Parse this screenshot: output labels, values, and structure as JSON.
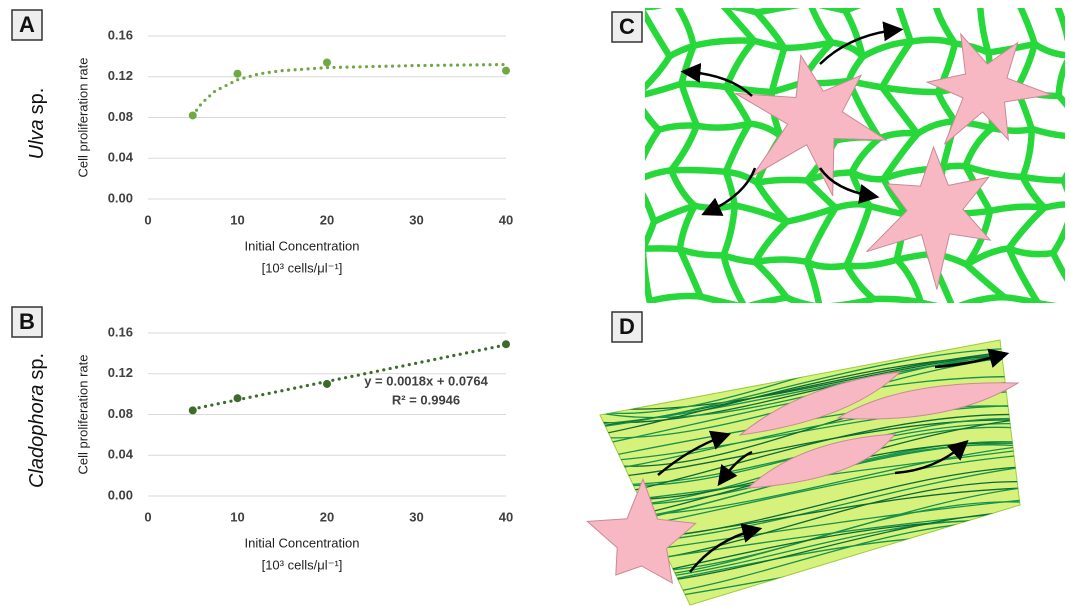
{
  "chart_data": [
    {
      "type": "scatter",
      "panel_label": "A",
      "row_label": {
        "italic": "Ulva",
        "plain": "sp."
      },
      "x_label": "Initial Concentration",
      "x_unit": "[10³ cells/μl⁻¹]",
      "y_label": "Cell proliferation rate",
      "x": [
        5,
        10,
        20,
        40
      ],
      "values": [
        0.082,
        0.123,
        0.134,
        0.126
      ],
      "color": "#70a845",
      "trendline": {
        "x": [
          5,
          6,
          7.5,
          10,
          12.5,
          15,
          20,
          30,
          40
        ],
        "values": [
          0.082,
          0.094,
          0.106,
          0.117,
          0.123,
          0.126,
          0.129,
          0.131,
          0.132
        ]
      },
      "xlim": [
        0,
        40
      ],
      "ylim": [
        0,
        0.16
      ],
      "xticks": [
        0,
        10,
        20,
        30,
        40
      ],
      "yticks": [
        {
          "value": 0,
          "label": "0.00"
        },
        {
          "value": 0.04,
          "label": "0.04"
        },
        {
          "value": 0.08,
          "label": "0.08"
        },
        {
          "value": 0.12,
          "label": "0.12"
        },
        {
          "value": 0.16,
          "label": "0.16"
        }
      ],
      "grid": true
    },
    {
      "type": "scatter",
      "panel_label": "B",
      "row_label": {
        "italic": "Cladophora",
        "plain": "sp."
      },
      "x_label": "Initial Concentration",
      "x_unit": "[10³ cells/μl⁻¹]",
      "y_label": "Cell proliferation rate",
      "x": [
        5,
        10,
        20,
        40
      ],
      "values": [
        0.084,
        0.096,
        0.11,
        0.149
      ],
      "color": "#3d6b2c",
      "trendline": {
        "x": [
          5,
          40
        ],
        "values": [
          0.0854,
          0.1484
        ]
      },
      "annotations": [
        "y = 0.0018x + 0.0764",
        "R² = 0.9946"
      ],
      "xlim": [
        0,
        40
      ],
      "ylim": [
        0,
        0.16
      ],
      "xticks": [
        0,
        10,
        20,
        30,
        40
      ],
      "yticks": [
        {
          "value": 0,
          "label": "0.00"
        },
        {
          "value": 0.04,
          "label": "0.04"
        },
        {
          "value": 0.08,
          "label": "0.08"
        },
        {
          "value": 0.12,
          "label": "0.12"
        },
        {
          "value": 0.16,
          "label": "0.16"
        }
      ],
      "grid": true
    }
  ],
  "illustrations": [
    {
      "panel_label": "C"
    },
    {
      "panel_label": "D"
    }
  ]
}
